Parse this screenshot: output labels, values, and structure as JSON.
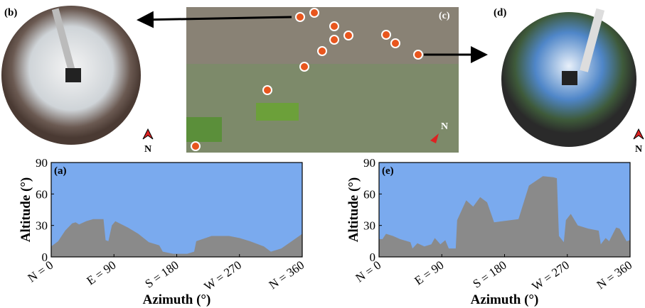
{
  "photos": [
    {
      "label": "(b)",
      "north": "N"
    },
    {
      "label": "(c)",
      "north": "N"
    },
    {
      "label": "(d)",
      "north": "N"
    }
  ],
  "chart_data": [
    {
      "type": "area",
      "panel": "(a)",
      "xlabel": "Azimuth (°)",
      "ylabel": "Altitude (°)",
      "sky_color": "#7aaaee",
      "color": "#8a8a8a",
      "x": [
        0,
        10,
        20,
        30,
        35,
        40,
        50,
        60,
        75,
        78,
        82,
        87,
        92,
        110,
        125,
        140,
        155,
        160,
        175,
        195,
        205,
        208,
        230,
        255,
        270,
        285,
        305,
        315,
        330,
        345,
        360
      ],
      "values": [
        10,
        15,
        25,
        32,
        33,
        31,
        34,
        36,
        36,
        16,
        15,
        30,
        34,
        28,
        22,
        14,
        11,
        5,
        3,
        3,
        5,
        15,
        20,
        20,
        18,
        15,
        10,
        5,
        8,
        15,
        22
      ],
      "xlim": [
        0,
        360
      ],
      "ylim": [
        0,
        90
      ],
      "yticks": [
        0,
        30,
        60,
        90
      ],
      "xticks": [
        {
          "value": 0,
          "label": "N = 0"
        },
        {
          "value": 90,
          "label": "E = 90"
        },
        {
          "value": 180,
          "label": "S = 180"
        },
        {
          "value": 270,
          "label": "W = 270"
        },
        {
          "value": 360,
          "label": "N = 360"
        }
      ]
    },
    {
      "type": "area",
      "panel": "(e)",
      "xlabel": "Azimuth (°)",
      "ylabel": "Altitude (°)",
      "sky_color": "#7aaaee",
      "color": "#8a8a8a",
      "x": [
        0,
        5,
        10,
        20,
        30,
        45,
        48,
        55,
        65,
        75,
        80,
        88,
        95,
        100,
        110,
        112,
        125,
        135,
        145,
        155,
        165,
        200,
        215,
        235,
        250,
        255,
        258,
        265,
        268,
        275,
        285,
        300,
        315,
        318,
        325,
        330,
        340,
        345,
        355,
        360
      ],
      "values": [
        17,
        17,
        22,
        20,
        17,
        14,
        8,
        13,
        10,
        12,
        18,
        12,
        16,
        8,
        8,
        35,
        54,
        48,
        57,
        52,
        33,
        36,
        68,
        77,
        76,
        75,
        20,
        14,
        35,
        41,
        30,
        27,
        25,
        12,
        18,
        15,
        28,
        27,
        15,
        16
      ],
      "xlim": [
        0,
        360
      ],
      "ylim": [
        0,
        90
      ],
      "yticks": [
        0,
        30,
        60,
        90
      ],
      "xticks": [
        {
          "value": 0,
          "label": "N = 0"
        },
        {
          "value": 90,
          "label": "E = 90"
        },
        {
          "value": 180,
          "label": "S = 180"
        },
        {
          "value": 270,
          "label": "W = 270"
        },
        {
          "value": 360,
          "label": "N = 360"
        }
      ]
    }
  ]
}
